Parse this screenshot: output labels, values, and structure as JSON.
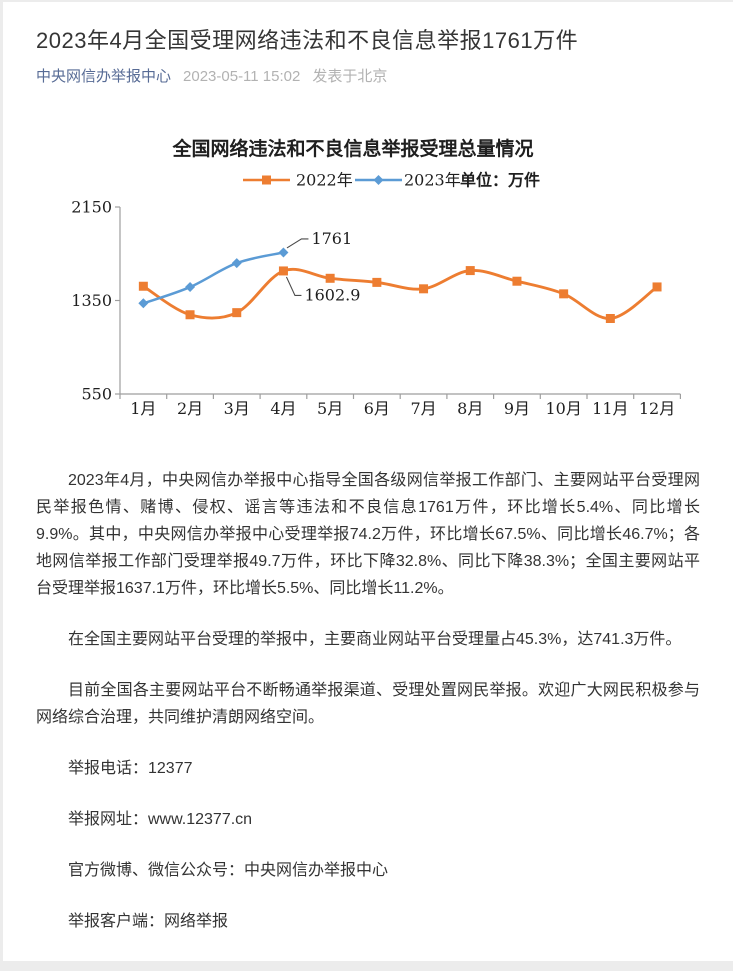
{
  "header": {
    "title": "2023年4月全国受理网络违法和不良信息举报1761万件",
    "author": "中央网信办举报中心",
    "date": "2023-05-11 15:02",
    "location": "发表于北京"
  },
  "chart_data": {
    "type": "line",
    "title": "全国网络违法和不良信息举报受理总量情况",
    "unit_label": "单位：万件",
    "categories": [
      "1月",
      "2月",
      "3月",
      "4月",
      "5月",
      "6月",
      "7月",
      "8月",
      "9月",
      "10月",
      "11月",
      "12月"
    ],
    "series": [
      {
        "name": "2022年",
        "color": "#ED7D31",
        "marker": "square",
        "values": [
          1472,
          1228,
          1246,
          1602.9,
          1540,
          1505,
          1450,
          1606,
          1515,
          1407,
          1196,
          1466
        ]
      },
      {
        "name": "2023年",
        "color": "#5B9BD5",
        "marker": "diamond",
        "values": [
          1326,
          1465,
          1670,
          1761
        ]
      }
    ],
    "ylim": [
      550,
      2150
    ],
    "yticks": [
      550,
      1350,
      2150
    ],
    "grid": false,
    "legend_position": "top",
    "axis_color": "#9e9e9e",
    "annotations": [
      {
        "series": 1,
        "index": 3,
        "label": "1761",
        "direction": "up-right"
      },
      {
        "series": 0,
        "index": 3,
        "label": "1602.9",
        "direction": "down-right"
      }
    ]
  },
  "article": {
    "paragraphs": [
      "2023年4月，中央网信办举报中心指导全国各级网信举报工作部门、主要网站平台受理网民举报色情、赌博、侵权、谣言等违法和不良信息1761万件，环比增长5.4%、同比增长9.9%。其中，中央网信办举报中心受理举报74.2万件，环比增长67.5%、同比增长46.7%；各地网信举报工作部门受理举报49.7万件，环比下降32.8%、同比下降38.3%；全国主要网站平台受理举报1637.1万件，环比增长5.5%、同比增长11.2%。",
      "在全国主要网站平台受理的举报中，主要商业网站平台受理量占45.3%，达741.3万件。",
      "目前全国各主要网站平台不断畅通举报渠道、受理处置网民举报。欢迎广大网民积极参与网络综合治理，共同维护清朗网络空间。"
    ],
    "contact_lines": [
      "举报电话：12377",
      "举报网址：www.12377.cn",
      "官方微博、微信公众号：中央网信办举报中心",
      "举报客户端：网络举报"
    ]
  }
}
